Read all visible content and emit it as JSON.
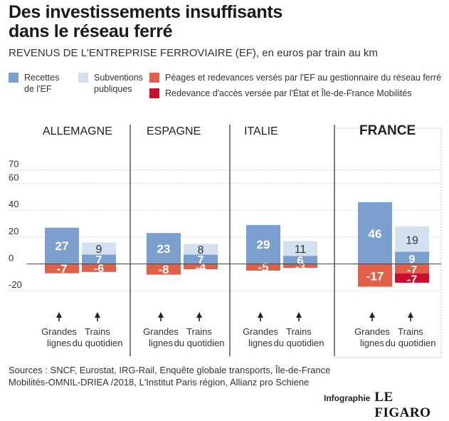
{
  "header": {
    "title_line1": "Des investissements insuffisants",
    "title_line2": "dans le réseau ferré",
    "subtitle": "REVENUS DE L'ENTREPRISE FERROVIAIRE (EF), en euros par train au km"
  },
  "legend": [
    {
      "label": "Recettes\nde l'EF",
      "color": "#7b9fcf"
    },
    {
      "label": "Subventions\npubliques",
      "color": "#d2e0f0"
    },
    {
      "label": "Péages et redevances versés par l'EF au gestionnaire du réseau ferré",
      "color": "#e2604a"
    },
    {
      "label": "Redevance d'accès versée par l'État et Île-de-France Mobilités",
      "color": "#c8102e"
    }
  ],
  "chart_data": {
    "type": "bar",
    "stacked": true,
    "ylim": [
      -20,
      70
    ],
    "yticks": [
      70,
      60,
      40,
      20,
      0,
      -20
    ],
    "groups": [
      "ALLEMAGNE",
      "ESPAGNE",
      "ITALIE",
      "FRANCE"
    ],
    "categories": [
      "Grandes\nlignes",
      "Trains\ndu quotidien"
    ],
    "series": [
      {
        "name": "Recettes de l'EF",
        "color": "#7b9fcf",
        "values": [
          [
            27,
            7
          ],
          [
            23,
            7
          ],
          [
            29,
            6
          ],
          [
            46,
            9
          ]
        ]
      },
      {
        "name": "Subventions publiques",
        "color": "#d2e0f0",
        "values": [
          [
            0,
            9
          ],
          [
            0,
            8
          ],
          [
            0,
            11
          ],
          [
            0,
            19
          ]
        ]
      },
      {
        "name": "Péages et redevances versés par l'EF au gestionnaire du réseau ferré",
        "color": "#e2604a",
        "values": [
          [
            -7,
            -6
          ],
          [
            -8,
            -4
          ],
          [
            -5,
            -3
          ],
          [
            -17,
            -7
          ]
        ]
      },
      {
        "name": "Redevance d'accès versée par l'État et Île-de-France Mobilités",
        "color": "#c8102e",
        "values": [
          [
            0,
            0
          ],
          [
            0,
            0
          ],
          [
            0,
            0
          ],
          [
            0,
            -7
          ]
        ]
      }
    ],
    "highlight_group": "FRANCE",
    "grid": true
  },
  "footer": {
    "source_line1": "Sources : SNCF, Eurostat, IRG-Rail, Enquête globale transports, Île-de-France",
    "source_line2": "Mobilités-OMNIL-DRIEA /2018, L'Institut Paris région, Allianz pro Schiene",
    "brand_word": "Infographie",
    "brand_logo": "LE FIGARO"
  }
}
